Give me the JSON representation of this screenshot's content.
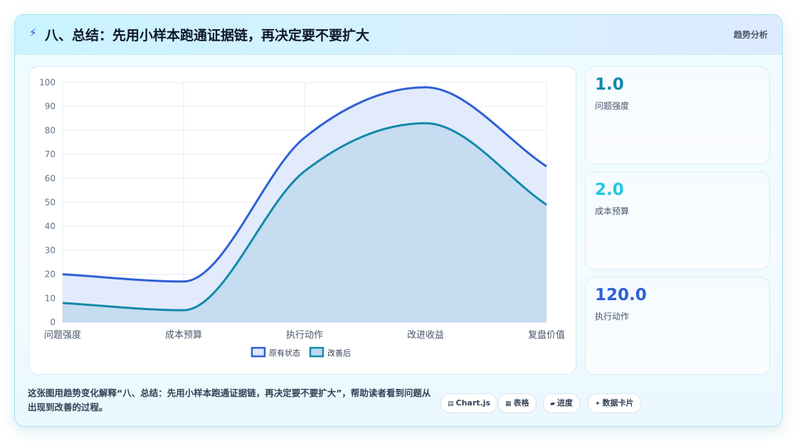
{
  "header": {
    "icon": "lightning-icon",
    "title": "八、总结：先用小样本跑通证据链，再决定要不要扩大",
    "tag": "趋势分析"
  },
  "chart_data": {
    "type": "area",
    "categories": [
      "问题强度",
      "成本预算",
      "执行动作",
      "改进收益",
      "复盘价值"
    ],
    "series": [
      {
        "name": "原有状态",
        "values": [
          20,
          17,
          77,
          98,
          65
        ],
        "color": "#2f5fd6",
        "fill": "#dde7fb"
      },
      {
        "name": "改善后",
        "values": [
          8,
          5,
          63,
          83,
          49
        ],
        "color": "#1389a8",
        "fill": "#bfd9ee"
      }
    ],
    "ylim": [
      0,
      100
    ],
    "yticks": [
      0,
      10,
      20,
      30,
      40,
      50,
      60,
      70,
      80,
      90,
      100
    ],
    "grid": true,
    "legend": "bottom"
  },
  "stats": [
    {
      "value": "1.0",
      "label": "问题强度",
      "color": "#1389a8"
    },
    {
      "value": "2.0",
      "label": "成本预算",
      "color": "#22c7e0"
    },
    {
      "value": "120.0",
      "label": "执行动作",
      "color": "#2f5fd6"
    }
  ],
  "footer": {
    "description": "这张图用趋势变化解释“八、总结：先用小样本跑通证据链，再决定要不要扩大”，帮助读者看到问题从出现到改善的过程。",
    "pills": [
      {
        "icon": "▤",
        "label": "Chart.js"
      },
      {
        "icon": "▦",
        "label": "表格"
      },
      {
        "icon": "▰",
        "label": "进度"
      },
      {
        "icon": "✦",
        "label": "数据卡片"
      }
    ]
  }
}
